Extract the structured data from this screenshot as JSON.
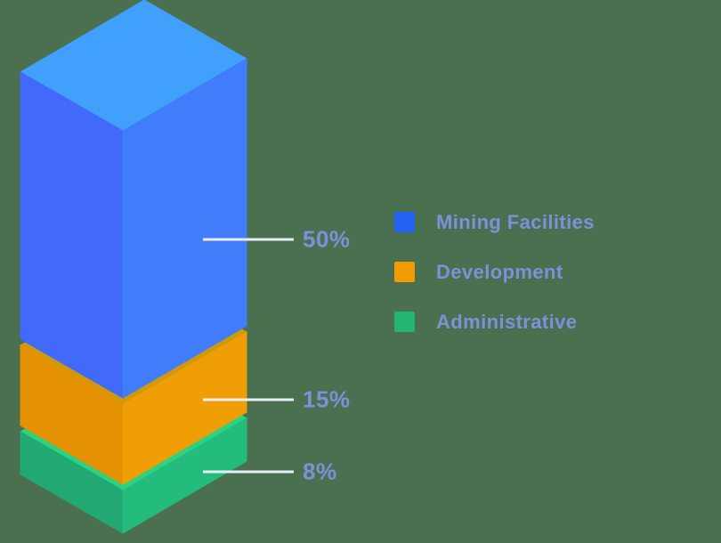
{
  "colors": {
    "background": "#4a7050",
    "text": "#7d90da",
    "leader_line": "#e7eef7"
  },
  "chart_data": {
    "type": "bar",
    "variant": "isometric-stacked-column",
    "unit": "%",
    "legend_position": "right",
    "grid": false,
    "segments": [
      {
        "label": "Mining Facilities",
        "value": 50,
        "display": "50%",
        "legend_color": "#2563f7",
        "colors": {
          "top": "#41a0fc",
          "left": "#4169fa",
          "right": "#417dfb"
        }
      },
      {
        "label": "Development",
        "value": 15,
        "display": "15%",
        "legend_color": "#f09c02",
        "colors": {
          "top": "#d0990b",
          "left": "#e59104",
          "right": "#ef9e05"
        }
      },
      {
        "label": "Administrative",
        "value": 8,
        "display": "8%",
        "legend_color": "#22b573",
        "colors": {
          "top": "#2bd381",
          "left": "#21a873",
          "right": "#24bc7c"
        }
      }
    ]
  }
}
